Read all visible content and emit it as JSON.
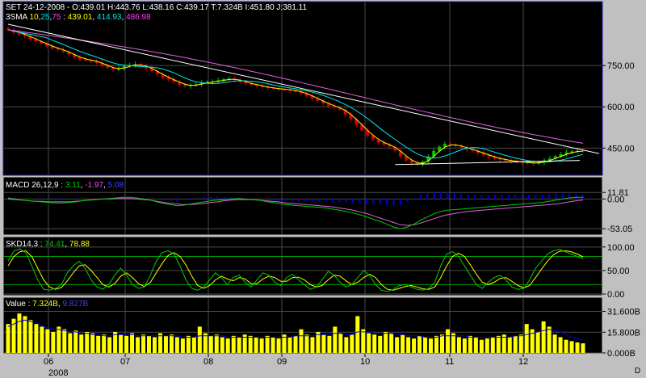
{
  "header": {
    "main": "SET 24-12-2008 - O:439.01 H:443.76 L:438.16 C:439.17 T:7.324B I:451.80 J:381.11",
    "sma_prefix": "3SMA",
    "sma_p1": "10",
    "sma_p2": "25",
    "sma_p3": "75",
    "sma_v1": "439.01",
    "sma_v2": "414.93",
    "sma_v3": "486.98",
    "macd_prefix": "MACD 26,12,9 :",
    "macd_v1": "3.11",
    "macd_v2": "-1.97",
    "macd_v3": "5.08",
    "skd_prefix": "SKD14,3 :",
    "skd_v1": "74.41",
    "skd_v2": "78.88",
    "value_prefix": "Value :",
    "value_v1": "7.324B",
    "value_v2": "9.827B"
  },
  "colors": {
    "background": "#000000",
    "frame": "#c0c0c0",
    "grid": "#4a4a4a",
    "candle_up": "#00c000",
    "candle_down": "#d00000",
    "sma10": "#ffff00",
    "sma25": "#00e5ee",
    "sma75": "#e060e0",
    "trendline": "#ffffff",
    "macd_line": "#00d000",
    "macd_signal": "#e060e0",
    "macd_hist": "#0000e0",
    "skd_k": "#00d000",
    "skd_d": "#ffff00",
    "volume_bar": "#ffff00",
    "volume_avg": "#0000e0",
    "label_magenta": "#ff40ff",
    "label_blue": "#0000ff"
  },
  "x_axis": {
    "labels": [
      "06",
      "07",
      "08",
      "09",
      "10",
      "11",
      "12"
    ],
    "year_label": "2008",
    "corner_label": "D"
  },
  "chart_data": [
    {
      "type": "candlestick",
      "symbol": "SET",
      "last_date": "24-12-2008",
      "ohlc_last": {
        "open": 439.01,
        "high": 443.76,
        "low": 438.16,
        "close": 439.17,
        "turnover": "7.324B"
      },
      "y_ticks": [
        "750.00",
        "600.00",
        "450.00"
      ],
      "ylim": [
        360,
        900
      ],
      "close_series": [
        880,
        870,
        862,
        858,
        845,
        838,
        830,
        820,
        812,
        808,
        800,
        790,
        780,
        772,
        770,
        766,
        760,
        750,
        742,
        735,
        740,
        748,
        752,
        755,
        748,
        740,
        730,
        718,
        705,
        700,
        690,
        680,
        675,
        678,
        682,
        688,
        690,
        692,
        696,
        700,
        702,
        698,
        690,
        685,
        680,
        676,
        672,
        668,
        666,
        664,
        662,
        660,
        655,
        650,
        640,
        630,
        622,
        612,
        602,
        598,
        590,
        572,
        555,
        535,
        515,
        495,
        480,
        470,
        462,
        455,
        440,
        420,
        405,
        395,
        390,
        400,
        420,
        440,
        455,
        465,
        462,
        458,
        452,
        445,
        440,
        432,
        425,
        418,
        412,
        408,
        405,
        402,
        400,
        398,
        396,
        394,
        398,
        405,
        412,
        420,
        428,
        434,
        438,
        440,
        439
      ],
      "sma": [
        {
          "name": "SMA 10",
          "last": 439.01
        },
        {
          "name": "SMA 25",
          "last": 414.93
        },
        {
          "name": "SMA 75",
          "last": 486.98
        }
      ],
      "trendline": {
        "from": [
          0,
          900
        ],
        "to": [
          104,
          430
        ]
      },
      "support_line": {
        "from": [
          70,
          390
        ],
        "to": [
          104,
          405
        ]
      }
    },
    {
      "type": "line",
      "name": "MACD 26,12,9",
      "values_last": {
        "macd": 3.11,
        "signal": -1.97,
        "histogram": 5.08
      },
      "y_ticks": [
        "11.81",
        "0.00",
        "-53.05"
      ],
      "ylim": [
        -60,
        15
      ],
      "macd_series": [
        2,
        0,
        -2,
        -3,
        -4,
        -5,
        -6,
        -7,
        -7,
        -6,
        -5,
        -3,
        -2,
        -1,
        0,
        1,
        2,
        3,
        3,
        2,
        0,
        -2,
        -5,
        -8,
        -10,
        -12,
        -11,
        -9,
        -7,
        -5,
        -3,
        -2,
        -1,
        0,
        1,
        0,
        -1,
        -2,
        -4,
        -6,
        -8,
        -10,
        -11,
        -12,
        -13,
        -14,
        -15,
        -16,
        -18,
        -20,
        -22,
        -25,
        -28,
        -32,
        -36,
        -40,
        -45,
        -50,
        -53,
        -50,
        -45,
        -38,
        -32,
        -26,
        -22,
        -20,
        -19,
        -18,
        -17,
        -16,
        -15,
        -14,
        -13,
        -12,
        -11,
        -10,
        -9,
        -8,
        -7,
        -6,
        -4,
        -2,
        0,
        2,
        3,
        3.11
      ],
      "signal_series": [
        0,
        -1,
        -2,
        -3,
        -4,
        -4,
        -5,
        -5,
        -5,
        -5,
        -4,
        -3,
        -2,
        -1,
        0,
        0,
        1,
        1,
        1,
        0,
        -1,
        -2,
        -4,
        -6,
        -8,
        -9,
        -10,
        -10,
        -9,
        -8,
        -6,
        -5,
        -3,
        -2,
        -1,
        -1,
        -1,
        -2,
        -3,
        -4,
        -5,
        -7,
        -8,
        -9,
        -10,
        -11,
        -12,
        -13,
        -14,
        -16,
        -18,
        -20,
        -23,
        -26,
        -30,
        -34,
        -38,
        -42,
        -46,
        -47,
        -46,
        -43,
        -39,
        -35,
        -31,
        -28,
        -26,
        -24,
        -22,
        -21,
        -20,
        -19,
        -18,
        -17,
        -16,
        -15,
        -14,
        -13,
        -12,
        -11,
        -10,
        -9,
        -7,
        -5,
        -3,
        -1.97
      ]
    },
    {
      "type": "line",
      "name": "SKD 14,3",
      "values_last": {
        "k": 74.41,
        "d": 78.88
      },
      "y_ticks": [
        "100.00",
        "50.00",
        "0.00"
      ],
      "ylim": [
        0,
        110
      ],
      "k_series": [
        70,
        92,
        96,
        88,
        60,
        30,
        10,
        8,
        12,
        20,
        45,
        60,
        70,
        55,
        30,
        15,
        10,
        20,
        40,
        55,
        40,
        20,
        12,
        15,
        40,
        70,
        88,
        92,
        85,
        60,
        30,
        12,
        8,
        15,
        30,
        45,
        35,
        20,
        35,
        40,
        25,
        15,
        30,
        45,
        40,
        25,
        18,
        35,
        42,
        30,
        20,
        10,
        15,
        30,
        48,
        40,
        25,
        15,
        20,
        35,
        50,
        40,
        20,
        8,
        5,
        10,
        18,
        20,
        15,
        10,
        8,
        12,
        25,
        60,
        85,
        90,
        80,
        60,
        40,
        20,
        12,
        25,
        35,
        40,
        30,
        15,
        10,
        12,
        30,
        55,
        70,
        85,
        92,
        95,
        90,
        85,
        80,
        75
      ],
      "d_series": [
        60,
        80,
        90,
        92,
        80,
        55,
        30,
        15,
        10,
        14,
        28,
        45,
        60,
        62,
        50,
        35,
        20,
        15,
        22,
        38,
        45,
        35,
        22,
        16,
        25,
        45,
        65,
        82,
        88,
        80,
        62,
        38,
        18,
        12,
        18,
        30,
        38,
        32,
        28,
        35,
        32,
        22,
        22,
        32,
        38,
        35,
        27,
        27,
        35,
        36,
        30,
        20,
        15,
        18,
        30,
        40,
        38,
        28,
        20,
        25,
        35,
        42,
        35,
        20,
        10,
        8,
        12,
        16,
        18,
        15,
        11,
        10,
        15,
        35,
        60,
        80,
        87,
        80,
        62,
        42,
        25,
        20,
        25,
        33,
        35,
        27,
        18,
        13,
        18,
        35,
        53,
        70,
        83,
        91,
        92,
        90,
        85,
        79
      ]
    },
    {
      "type": "bar",
      "name": "Value",
      "values_last": {
        "value": "7.324B",
        "average": "9.827B"
      },
      "y_ticks": [
        "31.600B",
        "15.800B",
        "0.000B"
      ],
      "ylim": [
        0,
        35
      ],
      "bar_values": [
        22,
        26,
        30,
        28,
        25,
        22,
        20,
        18,
        16,
        20,
        18,
        15,
        17,
        14,
        16,
        15,
        13,
        14,
        12,
        16,
        14,
        13,
        15,
        12,
        14,
        13,
        12,
        15,
        13,
        14,
        12,
        11,
        13,
        12,
        20,
        15,
        13,
        14,
        12,
        11,
        13,
        12,
        14,
        13,
        12,
        11,
        13,
        12,
        11,
        14,
        12,
        13,
        18,
        14,
        12,
        16,
        14,
        13,
        20,
        15,
        12,
        14,
        28,
        18,
        15,
        14,
        13,
        16,
        15,
        12,
        14,
        12,
        11,
        13,
        12,
        11,
        13,
        14,
        18,
        15,
        12,
        11,
        13,
        12,
        10,
        11,
        12,
        13,
        14,
        12,
        13,
        14,
        22,
        18,
        16,
        24,
        20,
        14,
        12,
        10,
        9,
        8,
        7.324
      ],
      "avg_values": [
        20,
        22,
        24,
        25,
        24,
        23,
        21,
        19,
        18,
        18,
        17,
        16,
        16,
        15,
        15,
        14,
        14,
        13,
        13,
        14,
        14,
        14,
        14,
        13,
        13,
        13,
        13,
        13,
        13,
        13,
        13,
        12,
        12,
        12,
        13,
        13,
        13,
        13,
        13,
        12,
        12,
        12,
        12,
        12,
        12,
        12,
        12,
        12,
        12,
        12,
        12,
        13,
        13,
        13,
        13,
        14,
        14,
        14,
        15,
        15,
        14,
        14,
        16,
        16,
        16,
        15,
        15,
        15,
        15,
        14,
        14,
        13,
        13,
        13,
        12,
        12,
        12,
        13,
        13,
        13,
        13,
        13,
        12,
        12,
        12,
        12,
        12,
        12,
        12,
        12,
        13,
        13,
        14,
        15,
        16,
        17,
        18,
        17,
        16,
        14,
        12,
        11,
        9.827
      ]
    }
  ]
}
